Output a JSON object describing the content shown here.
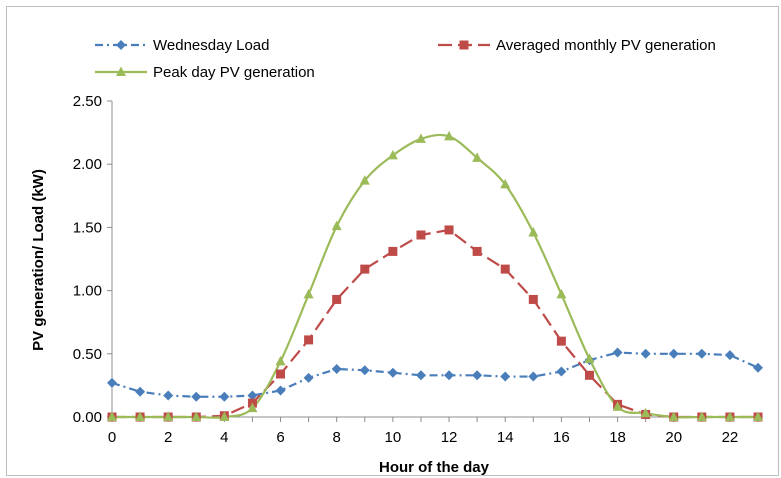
{
  "chart_data": {
    "type": "line",
    "xlabel": "Hour of the day",
    "ylabel": "PV generation/ Load (kW)",
    "xlim": [
      0,
      23
    ],
    "ylim": [
      0,
      2.5
    ],
    "xticks": [
      0,
      2,
      4,
      6,
      8,
      10,
      12,
      14,
      16,
      18,
      20,
      22
    ],
    "yticks": [
      0,
      0.5,
      1.0,
      1.5,
      2.0,
      2.5
    ],
    "ytick_labels": [
      "0.00",
      "0.50",
      "1.00",
      "1.50",
      "2.00",
      "2.50"
    ],
    "grid": false,
    "legend_position": "top",
    "x": [
      0,
      1,
      2,
      3,
      4,
      5,
      6,
      7,
      8,
      9,
      10,
      11,
      12,
      13,
      14,
      15,
      16,
      17,
      18,
      19,
      20,
      21,
      22,
      23
    ],
    "series": [
      {
        "name": "Wednesday Load",
        "color": "#4a7ebb",
        "marker": "diamond",
        "line_style": "dash-dot",
        "smooth": false,
        "values": [
          0.27,
          0.2,
          0.17,
          0.16,
          0.16,
          0.17,
          0.21,
          0.31,
          0.38,
          0.37,
          0.35,
          0.33,
          0.33,
          0.33,
          0.32,
          0.32,
          0.36,
          0.45,
          0.51,
          0.5,
          0.5,
          0.5,
          0.49,
          0.39
        ]
      },
      {
        "name": "Averaged monthly PV generation",
        "color": "#be4b48",
        "marker": "square",
        "line_style": "dashed",
        "smooth": false,
        "values": [
          0,
          0,
          0,
          0,
          0.01,
          0.11,
          0.34,
          0.61,
          0.93,
          1.17,
          1.31,
          1.44,
          1.48,
          1.31,
          1.17,
          0.93,
          0.6,
          0.33,
          0.1,
          0.02,
          0,
          0,
          0,
          0
        ]
      },
      {
        "name": "Peak day PV generation",
        "color": "#9bbb59",
        "marker": "triangle",
        "line_style": "solid",
        "smooth": true,
        "values": [
          0,
          0,
          0,
          0,
          0,
          0.07,
          0.44,
          0.97,
          1.51,
          1.87,
          2.07,
          2.2,
          2.22,
          2.05,
          1.84,
          1.46,
          0.97,
          0.46,
          0.08,
          0.03,
          0,
          0,
          0,
          0
        ]
      }
    ]
  }
}
